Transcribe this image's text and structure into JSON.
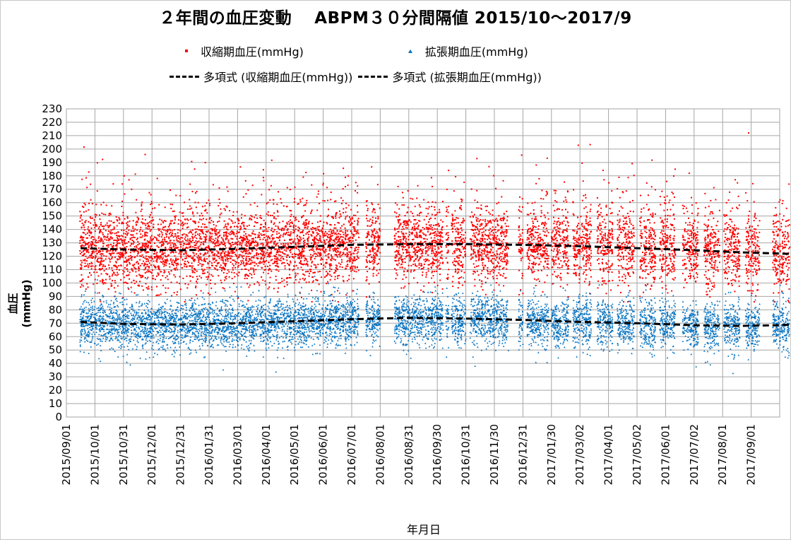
{
  "chart_data": {
    "type": "scatter",
    "title": "２年間の血圧変動　 ABPM３０分間隔値  2015/10〜2017/9",
    "xlabel": "年月日",
    "ylabel": "血圧 (mmHg)",
    "ylim": [
      0,
      230
    ],
    "yticks": [
      0,
      10,
      20,
      30,
      40,
      50,
      60,
      70,
      80,
      90,
      100,
      110,
      120,
      130,
      140,
      150,
      160,
      170,
      180,
      190,
      200,
      210,
      220,
      230
    ],
    "x_ticks": [
      "2015/09/01",
      "2015/10/01",
      "2015/10/31",
      "2015/12/01",
      "2015/12/31",
      "2016/01/31",
      "2016/03/01",
      "2016/04/01",
      "2016/05/01",
      "2016/06/01",
      "2016/07/01",
      "2016/08/01",
      "2016/08/31",
      "2016/09/30",
      "2016/10/31",
      "2016/11/30",
      "2016/12/31",
      "2017/01/30",
      "2017/03/02",
      "2017/04/01",
      "2017/05/02",
      "2017/06/01",
      "2017/07/02",
      "2017/08/01",
      "2017/09/01"
    ],
    "grid": true,
    "legend_position": "top",
    "series": [
      {
        "name": "収縮期血圧(mmHg)",
        "marker": "dot",
        "color": "#ff0000"
      },
      {
        "name": "拡張期血圧(mmHg)",
        "marker": "triangle",
        "color": "#0070c0"
      },
      {
        "name": "多項式 (収縮期血圧(mmHg))",
        "line": "dashed",
        "color": "#000000"
      },
      {
        "name": "多項式 (拡張期血圧(mmHg))",
        "line": "dashed",
        "color": "#000000"
      }
    ],
    "measurement_periods": [
      [
        0.95,
        8.1
      ],
      [
        8.1,
        11.1
      ],
      [
        11.1,
        20.5
      ],
      [
        21.0,
        22.0
      ],
      [
        23.0,
        26.4
      ],
      [
        26.6,
        26.8
      ],
      [
        27.0,
        28.0
      ],
      [
        28.3,
        31.0
      ],
      [
        31.7,
        32.0
      ],
      [
        32.3,
        33.8
      ],
      [
        34.0,
        35.2
      ],
      [
        35.5,
        36.8
      ],
      [
        37.2,
        38.3
      ],
      [
        38.6,
        39.8
      ],
      [
        40.2,
        41.3
      ],
      [
        41.6,
        42.7
      ],
      [
        43.2,
        44.3
      ],
      [
        44.7,
        45.8
      ],
      [
        46.1,
        47.2
      ],
      [
        47.6,
        48.6
      ],
      [
        49.5,
        50.7
      ],
      [
        51.0,
        52.0
      ],
      [
        54.0,
        55.0
      ],
      [
        55.3,
        56.3
      ]
    ],
    "systolic_mean_points": [
      [
        1,
        126
      ],
      [
        6,
        124
      ],
      [
        12,
        126
      ],
      [
        18,
        128
      ],
      [
        24,
        129
      ],
      [
        30,
        129
      ],
      [
        36,
        128
      ],
      [
        42,
        126
      ],
      [
        48,
        122
      ],
      [
        54,
        120
      ],
      [
        56,
        121
      ]
    ],
    "diastolic_mean_points": [
      [
        1,
        71
      ],
      [
        6,
        69
      ],
      [
        12,
        70
      ],
      [
        18,
        72
      ],
      [
        24,
        74
      ],
      [
        30,
        73
      ],
      [
        36,
        71
      ],
      [
        42,
        69
      ],
      [
        48,
        68
      ],
      [
        54,
        70
      ],
      [
        56,
        73
      ]
    ],
    "systolic_trend": [
      [
        1,
        126
      ],
      [
        4,
        125
      ],
      [
        8,
        124.5
      ],
      [
        12,
        125.5
      ],
      [
        16,
        127
      ],
      [
        20,
        128.5
      ],
      [
        24,
        129
      ],
      [
        28,
        129
      ],
      [
        32,
        128.5
      ],
      [
        36,
        127.5
      ],
      [
        40,
        126
      ],
      [
        44,
        124.5
      ],
      [
        47,
        123
      ],
      [
        50,
        122
      ],
      [
        53,
        121
      ],
      [
        56,
        121
      ]
    ],
    "diastolic_trend": [
      [
        1,
        71
      ],
      [
        4,
        69.5
      ],
      [
        8,
        69
      ],
      [
        12,
        70
      ],
      [
        16,
        71.5
      ],
      [
        20,
        73
      ],
      [
        24,
        74
      ],
      [
        28,
        73.5
      ],
      [
        32,
        72.5
      ],
      [
        36,
        71
      ],
      [
        40,
        70
      ],
      [
        44,
        68.5
      ],
      [
        47,
        68
      ],
      [
        50,
        68.5
      ],
      [
        53,
        70
      ],
      [
        56,
        73.5
      ]
    ]
  },
  "legend": {
    "systolic": "収縮期血圧(mmHg)",
    "diastolic": "拡張期血圧(mmHg)",
    "trend_systolic": "多項式 (収縮期血圧(mmHg))",
    "trend_diastolic": "多項式 (拡張期血圧(mmHg))"
  }
}
